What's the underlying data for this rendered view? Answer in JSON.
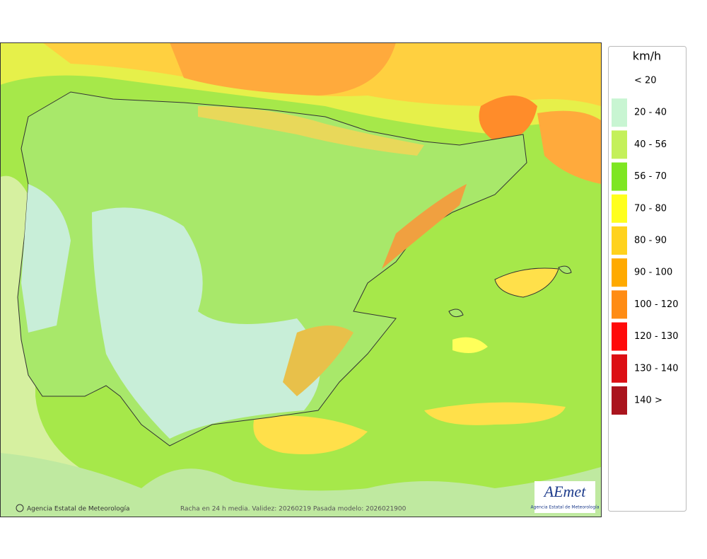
{
  "legend": {
    "title": "km/h",
    "items": [
      {
        "label": "< 20",
        "color": "#ffffff"
      },
      {
        "label": "20 - 40",
        "color": "#c8f5d2"
      },
      {
        "label": "40 - 56",
        "color": "#c4f05a"
      },
      {
        "label": "56 - 70",
        "color": "#7ee622"
      },
      {
        "label": "70 - 80",
        "color": "#ffff1e"
      },
      {
        "label": "80 - 90",
        "color": "#ffd21e"
      },
      {
        "label": "90 - 100",
        "color": "#ffaa00"
      },
      {
        "label": "100 - 120",
        "color": "#ff8c14"
      },
      {
        "label": "120 - 130",
        "color": "#ff0a0a"
      },
      {
        "label": "130 - 140",
        "color": "#dc0f14"
      },
      {
        "label": "140 >",
        "color": "#aa141e"
      }
    ]
  },
  "footer": {
    "credit": "Agencia Estatal de Meteorología",
    "caption": "Racha en 24 h media. Validez: 20260219 Pasada modelo: 2026021900"
  },
  "logo": {
    "mark": "AEmet",
    "text": "Agencia Estatal de Meteorología"
  }
}
